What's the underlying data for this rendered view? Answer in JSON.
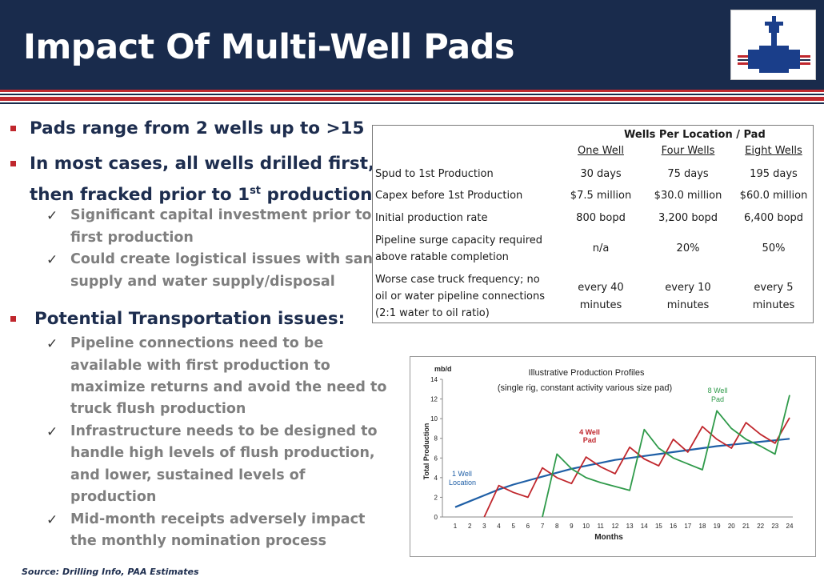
{
  "header": {
    "title": "Impact Of Multi-Well Pads",
    "logo_icon": "valve-logo-icon"
  },
  "colors": {
    "header_bg": "#192b4c",
    "accent_red": "#c0272d",
    "bullet_text": "#1d2d4e",
    "sub_text": "#7f7f7f"
  },
  "bullets": [
    {
      "text": "Pads range from 2 wells up to >15"
    },
    {
      "line1": "In most cases, all wells drilled first,",
      "line2_pre": "then fracked prior to 1",
      "line2_sup": "st",
      "line2_post": " production"
    },
    {
      "text": "Potential Transportation issues:"
    }
  ],
  "subs": [
    {
      "lines": [
        "Significant capital investment prior to",
        "first production"
      ]
    },
    {
      "lines": [
        "Could create logistical issues with sand",
        "supply and water supply/disposal"
      ]
    },
    {
      "lines": [
        "Pipeline connections need to be",
        "available with first production to",
        "maximize returns and avoid the need to",
        "truck flush production"
      ]
    },
    {
      "lines": [
        "Infrastructure needs to be designed to",
        "handle high levels of flush production,",
        "and lower, sustained levels of",
        "production"
      ]
    },
    {
      "lines": [
        "Mid-month receipts adversely impact",
        "the monthly nomination process"
      ]
    }
  ],
  "source": "Source: Drilling Info, PAA Estimates",
  "table": {
    "group_header": "Wells Per Location / Pad",
    "columns": [
      "One Well",
      "Four Wells",
      "Eight Wells"
    ],
    "rows": [
      {
        "label": [
          "Spud to 1st Production"
        ],
        "values": [
          [
            "30 days"
          ],
          [
            "75 days"
          ],
          [
            "195 days"
          ]
        ]
      },
      {
        "label": [
          "Capex before 1st Production"
        ],
        "values": [
          [
            "$7.5 million"
          ],
          [
            "$30.0 million"
          ],
          [
            "$60.0 million"
          ]
        ]
      },
      {
        "label": [
          "Initial production rate"
        ],
        "values": [
          [
            "800 bopd"
          ],
          [
            "3,200 bopd"
          ],
          [
            "6,400 bopd"
          ]
        ]
      },
      {
        "label": [
          "Pipeline surge capacity required",
          "above ratable completion"
        ],
        "values": [
          [
            "n/a"
          ],
          [
            "20%"
          ],
          [
            "50%"
          ]
        ]
      },
      {
        "label": [
          "Worse case truck frequency; no",
          "oil or water pipeline connections",
          "(2:1 water to oil ratio)"
        ],
        "values": [
          [
            "every 40",
            "minutes"
          ],
          [
            "every 10",
            "minutes"
          ],
          [
            "every 5",
            "minutes"
          ]
        ]
      }
    ]
  },
  "chart_data": {
    "type": "line",
    "title": "Illustrative Production Profiles",
    "subtitle": "(single rig, constant activity various size pad)",
    "unit": "mb/d",
    "xlabel": "Months",
    "ylabel": "Total Production",
    "x": [
      1,
      2,
      3,
      4,
      5,
      6,
      7,
      8,
      9,
      10,
      11,
      12,
      13,
      14,
      15,
      16,
      17,
      18,
      19,
      20,
      21,
      22,
      23,
      24
    ],
    "ylim": [
      0,
      14
    ],
    "yticks": [
      0,
      2,
      4,
      6,
      8,
      10,
      12,
      14
    ],
    "grid": false,
    "series": [
      {
        "name": "1 Well Location",
        "color": "#1f5fa6",
        "values": [
          1.0,
          1.6,
          2.2,
          2.8,
          3.3,
          3.7,
          4.1,
          4.5,
          4.9,
          5.2,
          5.5,
          5.8,
          6.0,
          6.2,
          6.4,
          6.6,
          6.8,
          7.0,
          7.2,
          7.35,
          7.5,
          7.65,
          7.8,
          7.95
        ]
      },
      {
        "name": "4 Well Pad",
        "color": "#c0272d",
        "values": [
          null,
          null,
          0,
          3.2,
          2.5,
          2.0,
          5.0,
          4.0,
          3.4,
          6.1,
          5.1,
          4.4,
          7.1,
          5.9,
          5.2,
          7.9,
          6.6,
          9.2,
          7.9,
          7.0,
          9.6,
          8.4,
          7.5,
          10.1
        ]
      },
      {
        "name": "8 Well Pad",
        "color": "#2f9a4a",
        "values": [
          null,
          null,
          null,
          null,
          null,
          null,
          0,
          6.4,
          4.9,
          4.0,
          3.5,
          3.1,
          2.7,
          8.9,
          7.0,
          6.0,
          5.4,
          4.8,
          10.8,
          9.0,
          7.9,
          7.2,
          6.4,
          12.4
        ]
      }
    ]
  }
}
